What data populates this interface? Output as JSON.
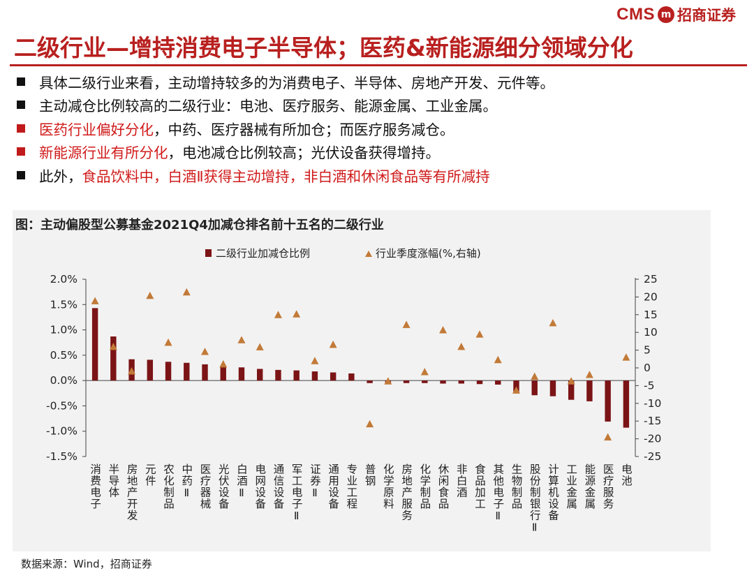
{
  "header": {
    "logo_text": "CMS",
    "logo_mark": "m",
    "logo_cn": "招商证券",
    "brand_color": "#b8201f"
  },
  "title": "二级行业—增持消费电子半导体；医药&新能源细分领域分化",
  "bullets": [
    {
      "marker": "black",
      "segments": [
        {
          "text": "具体二级行业来看，主动增持较多的为消费电子、半导体、房地产开发、元件等。",
          "red": false
        }
      ]
    },
    {
      "marker": "black",
      "segments": [
        {
          "text": "主动减仓比例较高的二级行业：电池、医疗服务、能源金属、工业金属。",
          "red": false
        }
      ]
    },
    {
      "marker": "red",
      "segments": [
        {
          "text": "医药行业偏好分化",
          "red": true
        },
        {
          "text": "，中药、医疗器械有所加仓；而医疗服务减仓。",
          "red": false
        }
      ]
    },
    {
      "marker": "red",
      "segments": [
        {
          "text": "新能源行业有所分化",
          "red": true
        },
        {
          "text": "，电池减仓比例较高；光伏设备获得增持。",
          "red": false
        }
      ]
    },
    {
      "marker": "black",
      "segments": [
        {
          "text": "此外，",
          "red": false
        },
        {
          "text": "食品饮料中，白酒Ⅱ获得主动增持，非白酒和休闲食品等有所减持",
          "red": true
        }
      ]
    }
  ],
  "chart_title": "图：主动偏股型公募基金2021Q4加减仓排名前十五名的二级行业",
  "source": "数据来源：Wind，招商证券",
  "chart_data": {
    "type": "bar",
    "title": "主动偏股型公募基金2021Q4加减仓排名前十五名的二级行业",
    "categories": [
      "消费电子",
      "半导体",
      "房地产开发",
      "元件",
      "农化制品",
      "中药Ⅱ",
      "医疗器械",
      "光伏设备",
      "白酒Ⅱ",
      "电网设备",
      "通信设备",
      "军工电子Ⅱ",
      "证券Ⅱ",
      "通用设备",
      "专业工程",
      "普钢",
      "化学原料",
      "房地产服务",
      "化学制品",
      "休闲食品",
      "非白酒",
      "食品加工",
      "其他电子Ⅱ",
      "生物制品",
      "股份制银行Ⅱ",
      "计算机设备",
      "工业金属",
      "能源金属",
      "医疗服务",
      "电池"
    ],
    "series": [
      {
        "name": "二级行业加减仓比例",
        "type": "bar",
        "axis": "left",
        "color": "#7b1416",
        "values": [
          1.43,
          0.87,
          0.42,
          0.41,
          0.37,
          0.35,
          0.32,
          0.29,
          0.26,
          0.23,
          0.21,
          0.2,
          0.18,
          0.16,
          0.14,
          -0.05,
          -0.05,
          -0.05,
          -0.05,
          -0.06,
          -0.06,
          -0.07,
          -0.08,
          -0.25,
          -0.29,
          -0.31,
          -0.38,
          -0.41,
          -0.81,
          -0.93
        ]
      },
      {
        "name": "行业季度涨幅(%,右轴)",
        "type": "scatter",
        "marker": "triangle",
        "axis": "right",
        "color": "#c27a38",
        "values": [
          18.8,
          5.9,
          -1.0,
          20.3,
          7.1,
          21.3,
          4.5,
          1.0,
          7.8,
          5.8,
          14.9,
          15.1,
          1.9,
          6.5,
          null,
          -15.9,
          -3.8,
          12.1,
          -1.2,
          10.6,
          5.9,
          9.4,
          2.2,
          -6.4,
          -2.5,
          12.6,
          -3.8,
          -2.0,
          -19.6,
          2.9
        ]
      }
    ],
    "y_left": {
      "min": -1.5,
      "max": 2.0,
      "step": 0.5,
      "tick_labels": [
        "-1.5%",
        "-1.0%",
        "-0.5%",
        "0.0%",
        "0.5%",
        "1.0%",
        "1.5%",
        "2.0%"
      ]
    },
    "y_right": {
      "min": -25,
      "max": 25,
      "step": 5,
      "tick_labels": [
        "-25",
        "-20",
        "-15",
        "-10",
        "-5",
        "0",
        "5",
        "10",
        "15",
        "20",
        "25"
      ]
    },
    "legend_position": "top-center",
    "grid": false
  }
}
